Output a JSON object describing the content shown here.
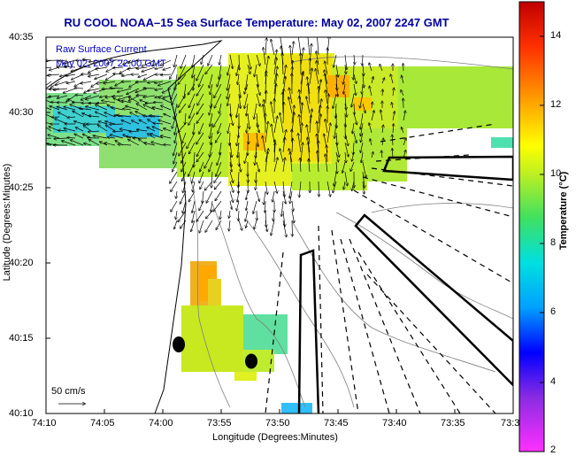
{
  "title": "RU COOL  NOAA–15  Sea Surface Temperature:  May 02, 2007 2247 GMT",
  "legend": {
    "line1": "Raw Surface Current",
    "line2": "May 02, 2007 22:00 GMT",
    "scale_label": "50 cm/s"
  },
  "axes": {
    "ylabel": "Latitude (Degrees:Minutes)",
    "xlabel": "Longitude (Degrees:Minutes)",
    "y_ticks": [
      "40:35",
      "40:30",
      "40:25",
      "40:20",
      "40:15",
      "40:10"
    ],
    "x_ticks": [
      "74:10",
      "74:05",
      "74:00",
      "73:55",
      "73:50",
      "73:45",
      "73:40",
      "73:35",
      "73:3"
    ]
  },
  "colorbar": {
    "label": "Temperature (°C)",
    "ticks": [
      "14",
      "12",
      "10",
      "8",
      "6",
      "4",
      "2"
    ],
    "range": [
      2,
      15
    ]
  },
  "colors": {
    "title": "#0000a0",
    "legend_text": "#0000c0"
  }
}
